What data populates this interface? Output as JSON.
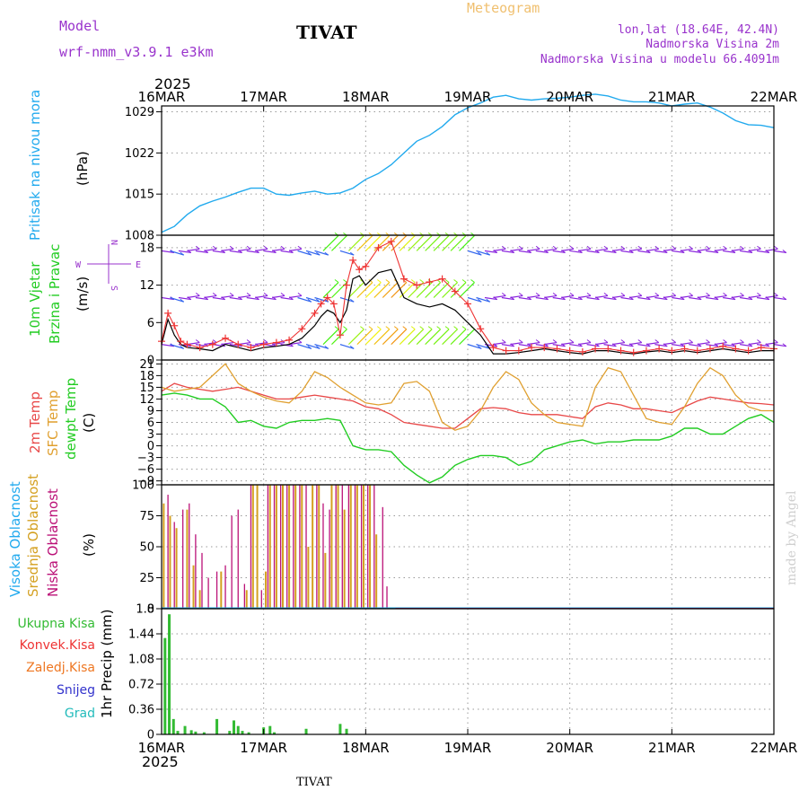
{
  "header": {
    "model_label": "Model",
    "model_name": "wrf-nmm_v3.9.1 e3km",
    "station_title": "TIVAT",
    "meteogram_label": "Meteogram",
    "lonlat": "lon,lat (18.64E, 42.4N)",
    "elevation": "Nadmorska Visina 2m",
    "model_elevation": "Nadmorska Visina u modelu 66.4091m",
    "year_top": "2025",
    "year_bottom": "2025",
    "footer_station": "TIVAT",
    "credit": "made by Angel"
  },
  "colors": {
    "pressure": "#22aaee",
    "wind_black": "#000000",
    "gust_red": "#ee3333",
    "temp2m": "#e84848",
    "sfc_temp": "#e0a030",
    "dewpt": "#22cc22",
    "cloud_high": "#22aaee",
    "cloud_mid": "#d4a020",
    "cloud_low": "#bb1177",
    "precip_total": "#33bb33",
    "precip_conv": "#ee3333",
    "precip_frozen": "#ee7722",
    "snow": "#3333cc",
    "grad": "#22bbbb",
    "purple_text": "#9933cc",
    "orange_text": "#f0c070"
  },
  "compass": {
    "n": "N",
    "s": "S",
    "w": "W",
    "e": "E"
  },
  "chart_data": [
    {
      "id": "pressure",
      "type": "line",
      "ylabel_lines": [
        "Pritisak na nivou mora"
      ],
      "unit": "(hPa)",
      "x_ticks": [
        "16MAR",
        "17MAR",
        "18MAR",
        "19MAR",
        "20MAR",
        "21MAR",
        "22MAR"
      ],
      "xlim_hours": [
        0,
        144
      ],
      "ylim": [
        1008,
        1030
      ],
      "y_ticks": [
        1008,
        1015,
        1022,
        1029
      ],
      "series": [
        {
          "x": [
            0,
            3,
            6,
            9,
            12,
            15,
            18,
            21,
            24,
            27,
            30,
            33,
            36,
            39,
            42,
            45,
            48,
            51,
            54,
            57,
            60,
            63,
            66,
            69,
            72,
            75,
            78,
            81,
            84,
            87,
            90,
            93,
            96,
            99,
            102,
            105,
            108,
            111,
            114,
            117,
            120,
            123,
            126,
            129,
            132,
            135,
            138,
            141,
            144
          ],
          "values": [
            1008.5,
            1009.5,
            1011.5,
            1013,
            1013.8,
            1014.5,
            1015.3,
            1016,
            1016,
            1015,
            1014.8,
            1015.2,
            1015.5,
            1015,
            1015.2,
            1016,
            1017.5,
            1018.5,
            1020,
            1022,
            1024,
            1025,
            1026.5,
            1028.5,
            1029.7,
            1030.5,
            1031.5,
            1031.8,
            1031.2,
            1031,
            1031.2,
            1031.3,
            1031.5,
            1031.8,
            1032,
            1031.7,
            1031,
            1030.7,
            1030.7,
            1030.5,
            1030,
            1030.3,
            1030.5,
            1029.8,
            1028.8,
            1027.5,
            1026.8,
            1026.7,
            1026.3
          ]
        }
      ]
    },
    {
      "id": "wind",
      "type": "line",
      "ylabel_lines": [
        "10m Vjetar",
        "Brzina i Pravac"
      ],
      "unit": "(m/s)",
      "ylim": [
        0,
        20
      ],
      "y_ticks": [
        0,
        6,
        12,
        18
      ],
      "barb_levels": [
        2.5,
        10,
        17.5
      ],
      "series": [
        {
          "name": "wind_speed",
          "x": [
            0,
            1.5,
            3,
            4.5,
            6,
            9,
            12,
            15,
            18,
            21,
            24,
            27,
            30,
            33,
            36,
            37.5,
            39,
            40.5,
            42,
            43.5,
            45,
            46.5,
            48,
            51,
            54,
            57,
            60,
            63,
            66,
            69,
            72,
            75,
            78,
            81,
            84,
            87,
            90,
            93,
            96,
            99,
            102,
            105,
            108,
            111,
            114,
            117,
            120,
            123,
            126,
            129,
            132,
            135,
            138,
            141,
            144
          ],
          "values": [
            2.5,
            6.5,
            4,
            2.5,
            2,
            1.8,
            1.5,
            2.5,
            2,
            1.5,
            2,
            2.2,
            2.5,
            3.5,
            5.5,
            7,
            8,
            7.5,
            6,
            8,
            13,
            13.5,
            12,
            14,
            14.5,
            10,
            9,
            8.5,
            9,
            8,
            6,
            4,
            1,
            1,
            1.2,
            1.5,
            1.8,
            1.5,
            1.2,
            1,
            1.5,
            1.5,
            1.2,
            1,
            1.3,
            1.5,
            1.2,
            1.5,
            1.2,
            1.5,
            1.8,
            1.5,
            1.2,
            1.5,
            1.5
          ]
        },
        {
          "name": "gust",
          "x": [
            0,
            1.5,
            3,
            4.5,
            6,
            9,
            12,
            15,
            18,
            21,
            24,
            27,
            30,
            33,
            36,
            37.5,
            39,
            40.5,
            42,
            43.5,
            45,
            46.5,
            48,
            51,
            54,
            57,
            60,
            63,
            66,
            69,
            72,
            75,
            78,
            81,
            84,
            87,
            90,
            93,
            96,
            99,
            102,
            105,
            108,
            111,
            114,
            117,
            120,
            123,
            126,
            129,
            132,
            135,
            138,
            141,
            144
          ],
          "values": [
            3,
            7.5,
            5.5,
            3,
            2.5,
            2,
            2.5,
            3.5,
            2.5,
            2,
            2.5,
            2.8,
            3.2,
            5,
            7.5,
            9,
            10,
            9,
            4,
            12,
            16,
            14.5,
            15,
            18,
            19,
            13,
            12,
            12.5,
            13,
            11,
            9,
            5,
            2,
            1.5,
            1.5,
            2,
            2,
            1.8,
            1.5,
            1.3,
            1.8,
            1.8,
            1.5,
            1.2,
            1.5,
            1.8,
            1.5,
            1.8,
            1.5,
            1.8,
            2.2,
            1.8,
            1.5,
            2,
            1.8
          ]
        }
      ]
    },
    {
      "id": "temperature",
      "type": "line",
      "ylabel_lines": [
        "2m Temp",
        "SFC Temp",
        "dewpt Temp"
      ],
      "unit": "(C)",
      "ylim": [
        -10,
        22
      ],
      "y_ticks": [
        -9,
        -6,
        -3,
        0,
        3,
        6,
        9,
        12,
        15,
        18,
        21
      ],
      "series": [
        {
          "name": "2m Temp",
          "x": [
            0,
            3,
            6,
            9,
            12,
            15,
            18,
            21,
            24,
            27,
            30,
            33,
            36,
            39,
            42,
            45,
            48,
            51,
            54,
            57,
            60,
            63,
            66,
            69,
            72,
            75,
            78,
            81,
            84,
            87,
            90,
            93,
            96,
            99,
            102,
            105,
            108,
            111,
            114,
            117,
            120,
            123,
            126,
            129,
            132,
            135,
            138,
            141,
            144
          ],
          "values": [
            14,
            16,
            15,
            14.5,
            14,
            14.5,
            15,
            14,
            13,
            12,
            12,
            12.5,
            13,
            12.5,
            12,
            11.5,
            10,
            9.5,
            8,
            6,
            5.5,
            5,
            4.5,
            4.5,
            7,
            9.5,
            9.8,
            9.5,
            8.5,
            8,
            8,
            8,
            7.5,
            7,
            10,
            11,
            10.5,
            9.5,
            9.5,
            9,
            8.5,
            10,
            11.5,
            12.5,
            12,
            11.5,
            11,
            10.8,
            10.5
          ]
        },
        {
          "name": "SFC Temp",
          "x": [
            0,
            3,
            6,
            9,
            12,
            15,
            18,
            21,
            24,
            27,
            30,
            33,
            36,
            39,
            42,
            45,
            48,
            51,
            54,
            57,
            60,
            63,
            66,
            69,
            72,
            75,
            78,
            81,
            84,
            87,
            90,
            93,
            96,
            99,
            102,
            105,
            108,
            111,
            114,
            117,
            120,
            123,
            126,
            129,
            132,
            135,
            138,
            141,
            144
          ],
          "values": [
            15,
            14,
            14.5,
            15,
            18,
            21,
            16,
            14,
            12.5,
            11.5,
            11,
            14,
            19,
            17.5,
            15,
            13,
            11,
            10.5,
            11,
            16,
            16.5,
            14,
            6,
            4,
            5,
            9,
            15,
            19,
            17,
            11,
            8,
            6,
            5.5,
            5,
            15,
            20,
            19,
            13,
            7,
            6,
            5.5,
            10,
            16,
            20,
            18,
            13,
            10,
            9,
            9
          ]
        },
        {
          "name": "dewpt Temp",
          "x": [
            0,
            3,
            6,
            9,
            12,
            15,
            18,
            21,
            24,
            27,
            30,
            33,
            36,
            39,
            42,
            45,
            48,
            51,
            54,
            57,
            60,
            63,
            66,
            69,
            72,
            75,
            78,
            81,
            84,
            87,
            90,
            93,
            96,
            99,
            102,
            105,
            108,
            111,
            114,
            117,
            120,
            123,
            126,
            129,
            132,
            135,
            138,
            141,
            144
          ],
          "values": [
            13,
            13.5,
            13,
            12,
            12,
            10,
            6,
            6.5,
            5,
            4.5,
            6,
            6.5,
            6.5,
            7,
            6.5,
            0,
            -1,
            -1,
            -1.5,
            -5,
            -7.5,
            -9.5,
            -8,
            -5,
            -3.5,
            -2.5,
            -2.5,
            -3,
            -5,
            -4,
            -1,
            0,
            1,
            1.5,
            0.5,
            1,
            1,
            1.5,
            1.5,
            1.5,
            2.5,
            4.5,
            4.5,
            3,
            3,
            5,
            7,
            8,
            6
          ]
        }
      ]
    },
    {
      "id": "clouds",
      "type": "bar",
      "ylabel_lines": [
        "Visoka Oblacnost",
        "Srednja Oblacnost",
        "Niska Oblacnost"
      ],
      "unit": "(%)",
      "ylim": [
        0,
        100
      ],
      "y_ticks": [
        0,
        25,
        50,
        75,
        100
      ],
      "series": [
        {
          "name": "Srednja Oblacnost",
          "x": [
            0.5,
            2,
            3.5,
            6,
            7.5,
            9,
            14,
            20,
            21.5,
            22.5,
            24.5,
            25.5,
            27,
            28.5,
            30,
            31.5,
            33,
            34.5,
            35.5,
            37,
            38.5,
            40,
            41.5,
            43,
            44.5,
            46,
            47.5,
            49,
            50.5
          ],
          "values": [
            85,
            75,
            65,
            80,
            35,
            15,
            30,
            15,
            100,
            100,
            30,
            100,
            100,
            100,
            100,
            100,
            100,
            50,
            100,
            100,
            45,
            100,
            100,
            80,
            100,
            100,
            100,
            100,
            60
          ]
        },
        {
          "name": "Niska Oblacnost",
          "x": [
            1.5,
            3,
            5,
            6.5,
            8,
            9.5,
            11,
            13,
            15,
            16.5,
            18,
            19.5,
            21,
            23.5,
            25,
            26.5,
            28,
            29.5,
            31,
            32.5,
            34,
            36.5,
            38,
            39.5,
            41,
            42.5,
            44,
            45.5,
            47,
            48.5,
            50,
            52,
            53
          ],
          "values": [
            92,
            70,
            80,
            85,
            60,
            45,
            25,
            30,
            35,
            75,
            80,
            20,
            100,
            15,
            100,
            100,
            100,
            100,
            100,
            100,
            100,
            100,
            85,
            80,
            100,
            100,
            100,
            100,
            100,
            100,
            100,
            82,
            18
          ]
        }
      ]
    },
    {
      "id": "precip",
      "type": "bar",
      "ylabel_lines": [
        "Ukupna Kisa",
        "Konvek.Kisa",
        "Zaledj.Kisa",
        "Snijeg",
        "Grad"
      ],
      "unit": "1hr Precip (mm)",
      "ylim": [
        0,
        1.8
      ],
      "y_ticks": [
        0,
        0.36,
        0.72,
        1.08,
        1.44,
        1.8
      ],
      "series": [
        {
          "name": "Ukupna Kisa",
          "x": [
            0.8,
            1.8,
            2.8,
            3.8,
            5.5,
            7,
            8,
            10,
            13,
            16,
            17,
            18,
            19,
            20.5,
            24,
            25.5,
            26.5,
            34,
            42,
            43.5
          ],
          "values": [
            1.38,
            1.72,
            0.22,
            0.05,
            0.12,
            0.06,
            0.04,
            0.03,
            0.22,
            0.05,
            0.2,
            0.12,
            0.05,
            0.03,
            0.1,
            0.12,
            0.03,
            0.08,
            0.15,
            0.08
          ]
        }
      ]
    }
  ]
}
